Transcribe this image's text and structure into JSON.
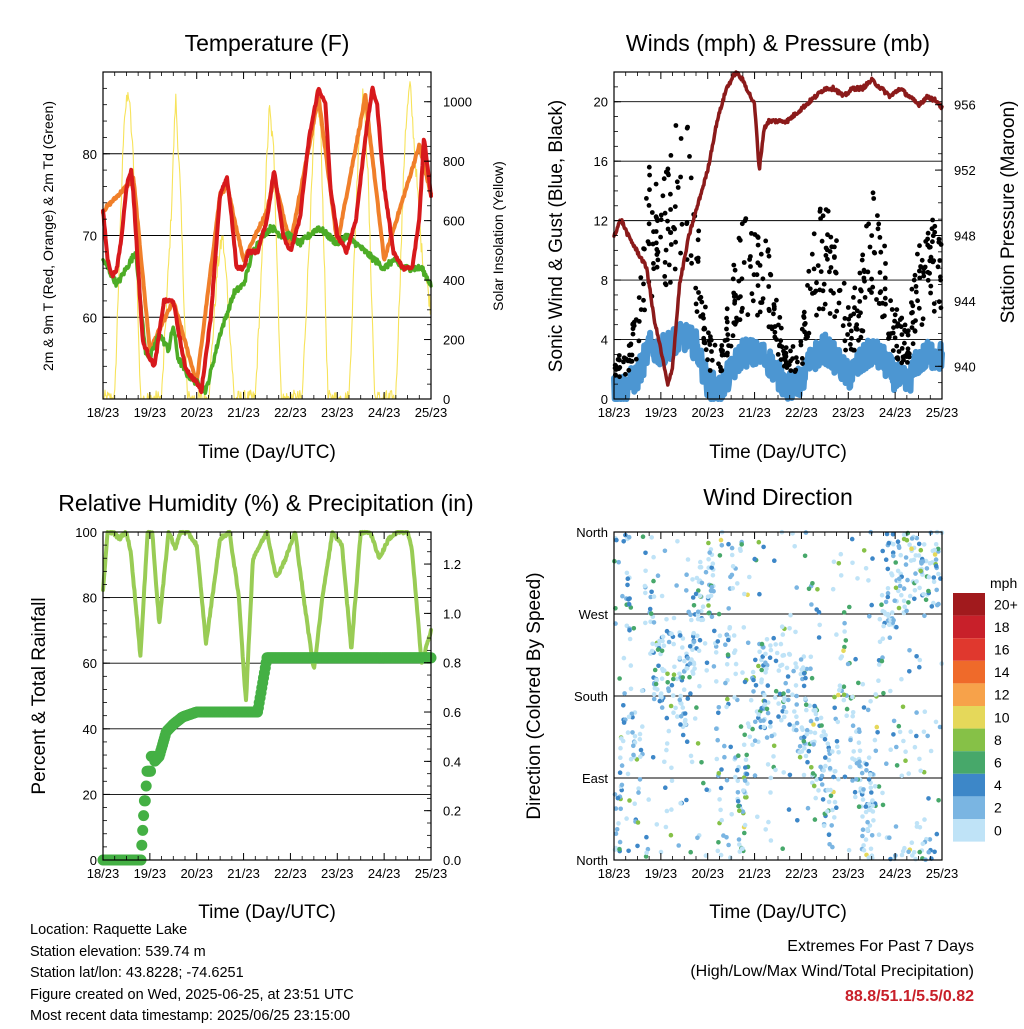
{
  "charts": {
    "temperature": {
      "title": "Temperature (F)",
      "ylabel": "2m & 9m T (Red, Orange) & 2m Td (Green)",
      "y2label": "Solar Insolation (Yellow)",
      "xlabel": "Time (Day/UTC)"
    },
    "winds": {
      "title": "Winds (mph) & Pressure (mb)",
      "ylabel": "Sonic Wind & Gust (Blue, Black)",
      "y2label": "Station Pressure (Maroon)",
      "xlabel": "Time (Day/UTC)"
    },
    "humidity": {
      "title": "Relative Humidity (%) & Precipitation (in)",
      "ylabel": "Percent & Total Rainfall",
      "xlabel": "Time (Day/UTC)"
    },
    "direction": {
      "title": "Wind Direction",
      "ylabel": "Direction (Colored By Speed)",
      "xlabel": "Time (Day/UTC)",
      "legend_title": "mph"
    }
  },
  "footer": {
    "location": "Location: Raquette Lake",
    "elevation": "Station elevation: 539.74 m",
    "latlon": "Station lat/lon: 43.8228; -74.6251",
    "created": "Figure created on Wed, 2025-06-25, at 23:51 UTC",
    "timestamp": "Most recent data timestamp: 2025/06/25 23:15:00",
    "extremes_title": "Extremes For Past 7 Days",
    "extremes_sub": "(High/Low/Max Wind/Total Precipitation)",
    "extremes_values": "88.8/51.1/5.5/0.82"
  },
  "colors": {
    "temp2m": "#d7191c",
    "temp9m": "#f07f2a",
    "dewpoint": "#4dac26",
    "solar": "#f7e35a",
    "gust": "#000000",
    "wind": "#4c96d2",
    "pressure": "#8b1a1a",
    "rh": "#99cc55",
    "precip": "#44b044"
  },
  "chart_data": [
    {
      "id": "temperature",
      "type": "line",
      "x_ticks": [
        "18/23",
        "19/23",
        "20/23",
        "21/23",
        "22/23",
        "23/23",
        "24/23",
        "25/23"
      ],
      "ylim": [
        50,
        90
      ],
      "y_ticks": [
        60,
        70,
        80
      ],
      "y2lim": [
        0,
        1100
      ],
      "y2_ticks": [
        0,
        200,
        400,
        600,
        800,
        1000
      ],
      "series": [
        {
          "name": "2m T (Red)",
          "axis": "y",
          "x": [
            0,
            0.1,
            0.2,
            0.3,
            0.4,
            0.5,
            0.6,
            0.65,
            0.75,
            0.85,
            1,
            1.1,
            1.3,
            1.5,
            1.65,
            1.75,
            1.85,
            2,
            2.1,
            2.3,
            2.5,
            2.65,
            2.75,
            2.85,
            3,
            3.1,
            3.3,
            3.5,
            3.65,
            3.75,
            3.85,
            4,
            4.2,
            4.4,
            4.6,
            4.75,
            4.85,
            5,
            5.2,
            5.4,
            5.6,
            5.75,
            5.85,
            6,
            6.2,
            6.4,
            6.6,
            6.75,
            6.85,
            7
          ],
          "values": [
            73,
            67,
            65,
            66,
            70,
            76,
            78,
            75,
            66,
            57,
            55,
            54,
            62,
            62,
            57,
            54,
            53,
            52,
            51,
            60,
            75,
            77,
            72,
            66,
            66,
            68,
            68,
            72,
            78,
            74,
            70,
            68,
            72,
            82,
            88,
            86,
            76,
            70,
            68,
            72,
            82,
            88,
            86,
            76,
            68,
            66,
            66,
            72,
            82,
            75
          ]
        },
        {
          "name": "9m T (Orange)",
          "axis": "y",
          "x": [
            0,
            0.5,
            0.65,
            1,
            1.5,
            2,
            2.5,
            2.65,
            3,
            3.5,
            3.65,
            4,
            4.6,
            5,
            5.6,
            6,
            6.75,
            7
          ],
          "values": [
            73,
            76,
            77,
            56,
            62,
            52,
            75,
            76,
            67,
            73,
            77,
            69,
            87,
            69,
            87,
            67,
            81,
            75
          ]
        },
        {
          "name": "2m Td (Green)",
          "axis": "y",
          "x": [
            0,
            0.1,
            0.2,
            0.3,
            0.4,
            0.5,
            0.6,
            0.7,
            0.8,
            0.9,
            1,
            1.2,
            1.4,
            1.5,
            1.6,
            1.8,
            2,
            2.2,
            2.5,
            2.8,
            3,
            3.2,
            3.4,
            3.6,
            3.8,
            4,
            4.2,
            4.4,
            4.6,
            4.8,
            5,
            5.2,
            5.4,
            5.6,
            5.8,
            6,
            6.2,
            6.4,
            6.6,
            6.8,
            7
          ],
          "values": [
            67,
            66,
            65,
            64,
            65,
            66,
            67,
            68,
            62,
            56,
            55,
            58,
            56,
            59,
            55,
            53,
            52,
            51,
            58,
            63,
            64,
            68,
            70,
            71,
            70,
            70,
            69,
            70,
            71,
            70,
            69,
            70,
            69,
            68,
            67,
            66,
            67,
            66,
            66,
            66,
            64
          ]
        },
        {
          "name": "Solar Insolation (Yellow)",
          "axis": "y2",
          "x": [
            0,
            0.25,
            0.45,
            0.55,
            0.65,
            0.8,
            1,
            1.25,
            1.45,
            1.55,
            1.65,
            1.8,
            2,
            2.25,
            2.45,
            2.55,
            2.65,
            2.8,
            3,
            3.25,
            3.45,
            3.55,
            3.65,
            3.8,
            4,
            4.25,
            4.45,
            4.55,
            4.65,
            4.8,
            5,
            5.25,
            5.45,
            5.55,
            5.65,
            5.8,
            6,
            6.25,
            6.45,
            6.55,
            6.65,
            6.8,
            7
          ],
          "values": [
            0,
            0,
            950,
            1030,
            800,
            0,
            0,
            0,
            600,
            1020,
            700,
            0,
            0,
            0,
            450,
            550,
            380,
            0,
            0,
            0,
            650,
            980,
            820,
            0,
            0,
            0,
            700,
            1030,
            900,
            0,
            0,
            0,
            850,
            1030,
            780,
            0,
            0,
            0,
            900,
            1060,
            840,
            500,
            300
          ]
        }
      ]
    },
    {
      "id": "winds",
      "type": "scatter",
      "x_ticks": [
        "18/23",
        "19/23",
        "20/23",
        "21/23",
        "22/23",
        "23/23",
        "24/23",
        "25/23"
      ],
      "ylim": [
        0,
        22
      ],
      "y_ticks": [
        0,
        4,
        8,
        12,
        16,
        20
      ],
      "y2lim": [
        938,
        958
      ],
      "y2_ticks": [
        940,
        944,
        948,
        952,
        956
      ],
      "series": [
        {
          "name": "Sonic Wind (Blue)",
          "axis": "y",
          "x": [
            0,
            0.25,
            0.5,
            0.75,
            1,
            1.25,
            1.5,
            1.75,
            2,
            2.25,
            2.5,
            2.75,
            3,
            3.25,
            3.5,
            3.75,
            4,
            4.25,
            4.5,
            4.75,
            5,
            5.25,
            5.5,
            5.75,
            6,
            6.25,
            6.5,
            6.75,
            7
          ],
          "values": [
            0.6,
            0.8,
            1.5,
            3.5,
            3.2,
            3.8,
            4.2,
            3.6,
            1.0,
            0.6,
            1.8,
            3.2,
            3.0,
            2.8,
            1.6,
            0.8,
            1.2,
            2.8,
            3.4,
            2.6,
            1.5,
            2.4,
            3.2,
            2.6,
            1.5,
            1.0,
            2.6,
            3.0,
            2.8
          ]
        },
        {
          "name": "Gust (Black)",
          "axis": "y",
          "x": [
            0,
            0.25,
            0.5,
            0.75,
            1,
            1.25,
            1.5,
            1.75,
            2,
            2.25,
            2.5,
            2.75,
            3,
            3.25,
            3.5,
            3.75,
            4,
            4.25,
            4.5,
            4.75,
            5,
            5.25,
            5.5,
            5.75,
            6,
            6.25,
            6.5,
            6.75,
            7
          ],
          "values": [
            1.8,
            2.0,
            4.0,
            10.0,
            9.0,
            11.0,
            14.0,
            9.0,
            3.0,
            2.0,
            5.0,
            8.0,
            7.0,
            7.0,
            4.0,
            2.0,
            3.0,
            7.0,
            9.0,
            7.0,
            4.0,
            5.5,
            9.0,
            7.0,
            4.0,
            3.0,
            7.0,
            8.0,
            7.0
          ]
        },
        {
          "name": "Station Pressure (Maroon)",
          "axis": "y2",
          "x": [
            0,
            0.15,
            0.3,
            0.5,
            0.7,
            0.85,
            1,
            1.15,
            1.25,
            1.4,
            1.6,
            1.8,
            2,
            2.2,
            2.4,
            2.6,
            2.75,
            3,
            3.1,
            3.2,
            3.3,
            3.5,
            3.7,
            3.9,
            4.1,
            4.3,
            4.5,
            4.7,
            4.9,
            5.1,
            5.3,
            5.5,
            5.7,
            5.9,
            6.1,
            6.3,
            6.5,
            6.7,
            6.9,
            7
          ],
          "values": [
            948,
            949,
            948,
            947,
            946,
            943,
            941,
            938.8,
            940,
            945,
            948,
            950,
            952,
            955,
            957,
            958,
            957.5,
            956,
            952,
            954.5,
            955,
            955,
            955,
            955.5,
            956,
            956.5,
            957,
            957,
            956.5,
            957,
            957,
            957.5,
            957,
            956.5,
            957,
            956.5,
            956,
            956.5,
            956.2,
            955.8
          ]
        }
      ]
    },
    {
      "id": "humidity",
      "type": "line",
      "x_ticks": [
        "18/23",
        "19/23",
        "20/23",
        "21/23",
        "22/23",
        "23/23",
        "24/23",
        "25/23"
      ],
      "ylim": [
        0,
        100
      ],
      "y_ticks": [
        0,
        20,
        40,
        60,
        80,
        100
      ],
      "y2lim": [
        0,
        1.33
      ],
      "y2_ticks": [
        0.0,
        0.2,
        0.4,
        0.6,
        0.8,
        1.0,
        1.2
      ],
      "series": [
        {
          "name": "Relative Humidity",
          "axis": "y",
          "x": [
            0,
            0.1,
            0.2,
            0.35,
            0.5,
            0.6,
            0.8,
            0.95,
            1.05,
            1.2,
            1.4,
            1.55,
            1.65,
            1.8,
            2,
            2.2,
            2.5,
            2.7,
            2.9,
            3.05,
            3.2,
            3.5,
            3.7,
            3.9,
            4.1,
            4.3,
            4.5,
            4.7,
            4.9,
            5.1,
            5.3,
            5.5,
            5.7,
            5.9,
            6.1,
            6.3,
            6.5,
            6.6,
            6.8,
            7
          ],
          "values": [
            82,
            100,
            100,
            98,
            100,
            93,
            62,
            100,
            100,
            72,
            100,
            95,
            100,
            100,
            96,
            66,
            98,
            100,
            80,
            48,
            92,
            100,
            86,
            92,
            100,
            78,
            58,
            82,
            100,
            96,
            64,
            100,
            100,
            92,
            98,
            100,
            100,
            94,
            60,
            70
          ]
        },
        {
          "name": "Total Precipitation",
          "axis": "y2",
          "x": [
            0,
            0.5,
            0.8,
            0.95,
            1.1,
            1.2,
            1.35,
            1.5,
            1.7,
            2,
            2.5,
            2.8,
            3.0,
            3.3,
            3.5,
            3.7,
            4,
            5,
            6,
            7
          ],
          "values": [
            0,
            0,
            0,
            0.38,
            0.4,
            0.42,
            0.52,
            0.55,
            0.58,
            0.6,
            0.6,
            0.6,
            0.6,
            0.6,
            0.82,
            0.82,
            0.82,
            0.82,
            0.82,
            0.82
          ]
        }
      ]
    },
    {
      "id": "direction",
      "type": "scatter",
      "x_ticks": [
        "18/23",
        "19/23",
        "20/23",
        "21/23",
        "22/23",
        "23/23",
        "24/23",
        "25/23"
      ],
      "y_ticks": [
        "North",
        "East",
        "South",
        "West",
        "North"
      ],
      "ylim": [
        0,
        360
      ],
      "series": [
        {
          "name": "Wind Direction",
          "axis": "y",
          "x": [
            0.1,
            0.3,
            0.5,
            0.7,
            0.9,
            1.1,
            1.3,
            1.5,
            1.7,
            1.9,
            2.1,
            2.3,
            2.5,
            2.7,
            2.9,
            3.1,
            3.3,
            3.5,
            3.7,
            3.9,
            4.1,
            4.3,
            4.5,
            4.7,
            4.9,
            5.1,
            5.3,
            5.5,
            5.7,
            5.9,
            6.1,
            6.3,
            6.5,
            6.7,
            6.9
          ],
          "values": [
            20,
            340,
            10,
            350,
            200,
            190,
            220,
            185,
            260,
            290,
            300,
            20,
            340,
            15,
            170,
            190,
            180,
            200,
            210,
            170,
            160,
            120,
            90,
            60,
            220,
            130,
            70,
            40,
            270,
            300,
            310,
            330,
            350,
            340,
            320
          ]
        }
      ],
      "legend": {
        "labels": [
          "20+",
          "18",
          "16",
          "14",
          "12",
          "10",
          "8",
          "6",
          "4",
          "2",
          "0"
        ],
        "colors": [
          "#a11a1d",
          "#c8202a",
          "#e0382e",
          "#ef6a2a",
          "#f7a24a",
          "#e5d85a",
          "#86c147",
          "#47a86a",
          "#3d87c8",
          "#7ab5e2",
          "#bfe3f7"
        ]
      }
    }
  ]
}
